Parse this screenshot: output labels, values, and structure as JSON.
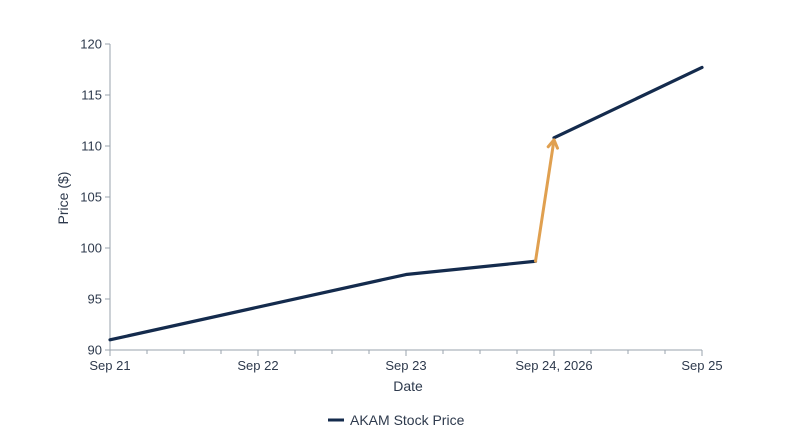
{
  "chart_data": {
    "type": "line",
    "title": "",
    "xlabel": "Date",
    "ylabel": "Price ($)",
    "ylim": [
      90,
      120
    ],
    "yticks": [
      90,
      95,
      100,
      105,
      110,
      115,
      120
    ],
    "xlim": [
      "2026-09-21",
      "2026-09-25"
    ],
    "xtick_labels": [
      {
        "date": "2026-09-21",
        "label": "Sep 21"
      },
      {
        "date": "2026-09-22",
        "label": "Sep 22"
      },
      {
        "date": "2026-09-23",
        "label": "Sep 23"
      },
      {
        "date": "2026-09-24",
        "label": "Sep 24, 2026"
      },
      {
        "date": "2026-09-25",
        "label": "Sep 25"
      }
    ],
    "grid": false,
    "legend": {
      "placement": "bottom-center"
    },
    "series": [
      {
        "name": "AKAM Stock Price",
        "color": "#142b4d",
        "points": [
          {
            "x": "2026-09-21 00:00",
            "y": 91.0
          },
          {
            "x": "2026-09-23 00:00",
            "y": 97.4
          },
          {
            "x": "2026-09-23 21:00",
            "y": 98.7
          }
        ]
      },
      {
        "name": "AKAM Stock Price",
        "color": "#142b4d",
        "points": [
          {
            "x": "2026-09-24 00:00",
            "y": 110.8
          },
          {
            "x": "2026-09-25 00:00",
            "y": 117.7
          }
        ]
      }
    ],
    "annotations": [
      {
        "type": "arrow",
        "color": "#e0a050",
        "from": {
          "x": "2026-09-23 21:00",
          "y": 98.7
        },
        "to": {
          "x": "2026-09-24 00:00",
          "y": 110.6
        }
      }
    ]
  }
}
